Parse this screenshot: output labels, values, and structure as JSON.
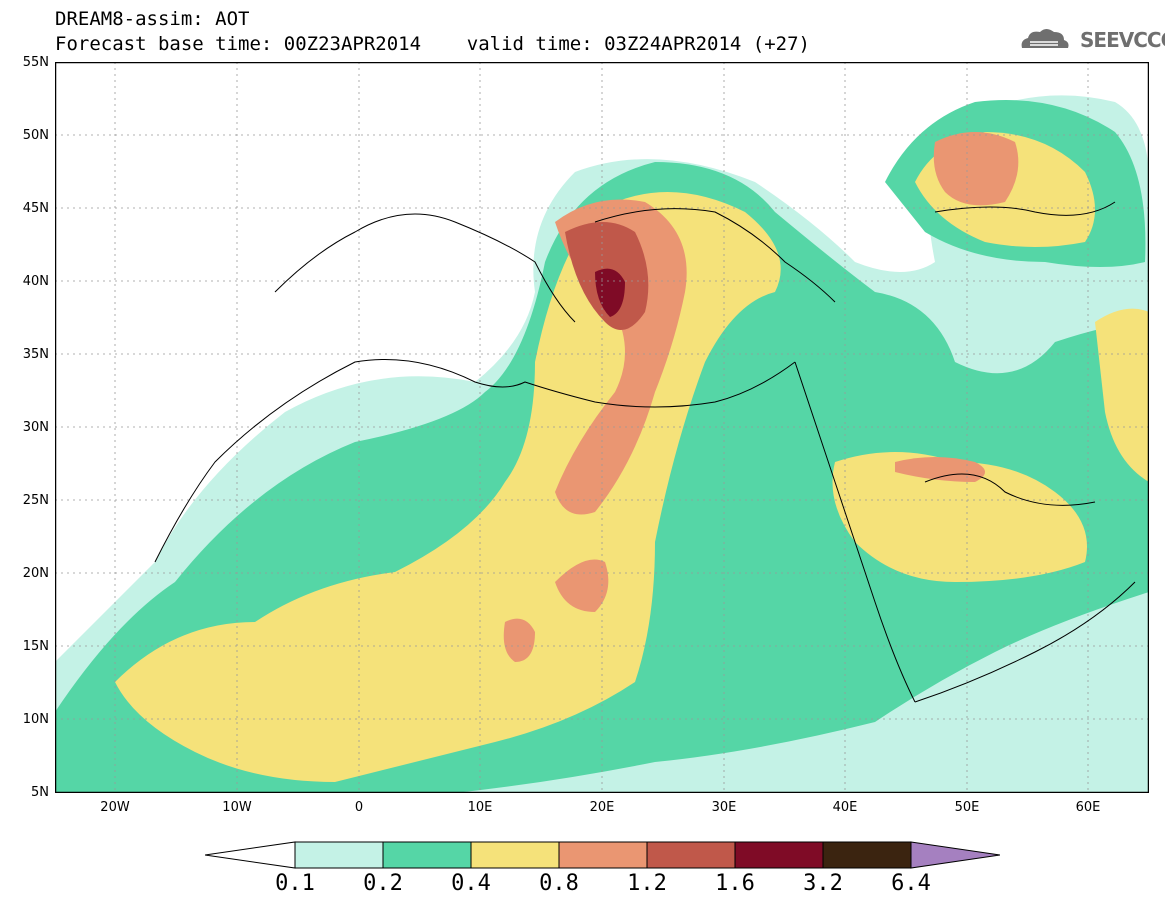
{
  "header": {
    "title_line1": "DREAM8-assim: AOT",
    "title_line2": "Forecast base time: 00Z23APR2014    valid time: 03Z24APR2014 (+27)"
  },
  "logo": {
    "text": "SEEVCCC",
    "icon": "cloud-logo-icon"
  },
  "map": {
    "lat_labels": [
      "55N",
      "50N",
      "45N",
      "40N",
      "35N",
      "30N",
      "25N",
      "20N",
      "15N",
      "10N",
      "5N"
    ],
    "lon_labels": [
      "20W",
      "10W",
      "0",
      "10E",
      "20E",
      "30E",
      "40E",
      "50E",
      "60E"
    ],
    "colors": {
      "c01": "#c4f2e6",
      "c02": "#55d6a6",
      "c04": "#f5e27a",
      "c08": "#ea9672",
      "c12": "#c0584a",
      "c16": "#7f0b26",
      "c32": "#3b2410",
      "c64": "#a580c0"
    }
  },
  "colorbar": {
    "labels": [
      "0.1",
      "0.2",
      "0.4",
      "0.8",
      "1.2",
      "1.6",
      "3.2",
      "6.4"
    ]
  }
}
